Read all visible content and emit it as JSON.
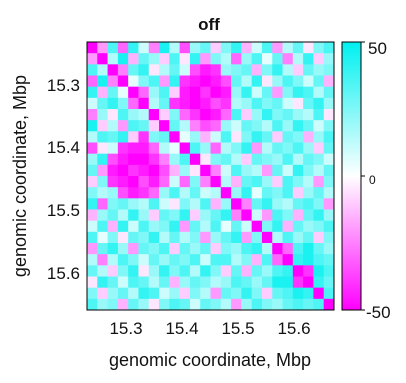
{
  "chart_data": {
    "type": "heatmap",
    "title": "off",
    "xlabel": "genomic coordinate, Mbp",
    "ylabel": "genomic coordinate, Mbp",
    "x_ticks": [
      "15.3",
      "15.4",
      "15.5",
      "15.6"
    ],
    "y_ticks": [
      "15.3",
      "15.4",
      "15.5",
      "15.6"
    ],
    "x_tick_values": [
      15.3,
      15.4,
      15.5,
      15.6
    ],
    "y_tick_values": [
      15.3,
      15.4,
      15.5,
      15.6
    ],
    "xlim": [
      15.24,
      15.665
    ],
    "ylim": [
      15.24,
      15.665
    ],
    "y_direction": "down",
    "colorbar": {
      "ticks": [
        "50",
        "0",
        "-50"
      ],
      "tick_values": [
        50,
        0,
        -50
      ],
      "range": [
        -50,
        50
      ],
      "colors": {
        "max": "#00f0f0",
        "mid": "#ffffff",
        "min": "#ff00ff"
      }
    },
    "grid_size": 24,
    "matrix_note": "symmetric contact difference matrix; diagonal strongly negative",
    "values": [
      [
        -50,
        -20,
        35,
        -30,
        40,
        10,
        -25,
        45,
        15,
        -35,
        20,
        30,
        -10,
        25,
        40,
        -15,
        10,
        35,
        -20,
        15,
        30,
        -5,
        25,
        35
      ],
      [
        -20,
        -50,
        15,
        45,
        -15,
        30,
        20,
        -10,
        35,
        -5,
        40,
        -20,
        25,
        15,
        -30,
        20,
        35,
        5,
        30,
        -25,
        15,
        40,
        -10,
        20
      ],
      [
        35,
        15,
        -50,
        -25,
        30,
        40,
        -5,
        15,
        30,
        10,
        -35,
        -45,
        -40,
        20,
        25,
        30,
        -15,
        25,
        40,
        15,
        -10,
        30,
        20,
        25
      ],
      [
        -30,
        45,
        -25,
        -50,
        5,
        25,
        35,
        -20,
        40,
        -40,
        -45,
        -50,
        -45,
        -35,
        30,
        15,
        40,
        -5,
        20,
        35,
        25,
        10,
        30,
        -15
      ],
      [
        40,
        -15,
        30,
        5,
        -50,
        -30,
        20,
        35,
        -10,
        -45,
        -50,
        -40,
        -50,
        -45,
        20,
        40,
        10,
        30,
        -20,
        25,
        40,
        35,
        15,
        30
      ],
      [
        10,
        30,
        40,
        25,
        -30,
        -50,
        15,
        30,
        -40,
        -45,
        -50,
        -45,
        -35,
        -40,
        15,
        20,
        35,
        25,
        30,
        10,
        -5,
        30,
        40,
        20
      ],
      [
        -25,
        20,
        -5,
        35,
        20,
        15,
        -50,
        -10,
        25,
        -30,
        -40,
        -50,
        -45,
        -30,
        35,
        -10,
        20,
        40,
        25,
        30,
        20,
        15,
        35,
        -5
      ],
      [
        45,
        -10,
        15,
        -20,
        35,
        30,
        -10,
        -50,
        30,
        15,
        -25,
        -35,
        -30,
        20,
        10,
        30,
        25,
        15,
        35,
        20,
        40,
        30,
        10,
        25
      ],
      [
        15,
        35,
        30,
        40,
        -10,
        -40,
        25,
        30,
        -50,
        5,
        20,
        -15,
        10,
        35,
        -5,
        25,
        40,
        30,
        -10,
        30,
        25,
        -15,
        20,
        35
      ],
      [
        -35,
        -5,
        10,
        -40,
        -45,
        -45,
        -30,
        15,
        5,
        -50,
        35,
        20,
        -30,
        15,
        25,
        40,
        -20,
        15,
        30,
        25,
        35,
        20,
        -10,
        30
      ],
      [
        20,
        40,
        -35,
        -45,
        -50,
        -50,
        -40,
        -25,
        20,
        35,
        -50,
        -5,
        25,
        30,
        15,
        -10,
        30,
        25,
        20,
        35,
        15,
        30,
        25,
        10
      ],
      [
        30,
        -20,
        -45,
        -50,
        -40,
        -45,
        -50,
        -35,
        -15,
        20,
        -5,
        -50,
        -25,
        10,
        35,
        20,
        15,
        -20,
        30,
        10,
        40,
        25,
        15,
        30
      ],
      [
        -10,
        25,
        -40,
        -45,
        -50,
        -35,
        -45,
        -30,
        10,
        -30,
        25,
        -25,
        -50,
        15,
        -15,
        30,
        35,
        20,
        -10,
        35,
        25,
        15,
        -20,
        25
      ],
      [
        25,
        15,
        20,
        -35,
        -45,
        -40,
        -30,
        20,
        35,
        15,
        30,
        10,
        15,
        -50,
        20,
        40,
        5,
        30,
        25,
        35,
        -10,
        20,
        30,
        15
      ],
      [
        40,
        -30,
        25,
        30,
        20,
        15,
        35,
        10,
        -5,
        25,
        15,
        35,
        -15,
        20,
        -50,
        -25,
        30,
        40,
        20,
        15,
        30,
        35,
        25,
        -20
      ],
      [
        -15,
        20,
        30,
        15,
        40,
        20,
        -10,
        30,
        25,
        40,
        -10,
        20,
        30,
        40,
        -25,
        -50,
        10,
        -20,
        35,
        25,
        -15,
        30,
        40,
        20
      ],
      [
        10,
        35,
        -15,
        40,
        10,
        35,
        20,
        25,
        40,
        -20,
        30,
        15,
        35,
        5,
        30,
        10,
        -50,
        25,
        40,
        -15,
        30,
        20,
        25,
        35
      ],
      [
        35,
        5,
        25,
        -5,
        30,
        25,
        40,
        15,
        30,
        15,
        25,
        -20,
        20,
        30,
        40,
        -20,
        25,
        -50,
        15,
        35,
        20,
        30,
        -10,
        25
      ],
      [
        -20,
        30,
        40,
        20,
        -20,
        30,
        25,
        35,
        -10,
        30,
        20,
        30,
        -10,
        25,
        20,
        35,
        40,
        15,
        -50,
        -30,
        35,
        45,
        30,
        20
      ],
      [
        15,
        -25,
        15,
        35,
        25,
        10,
        30,
        20,
        30,
        25,
        35,
        10,
        35,
        35,
        15,
        25,
        -15,
        35,
        -30,
        -50,
        40,
        45,
        35,
        30
      ],
      [
        30,
        15,
        -10,
        25,
        40,
        -5,
        20,
        40,
        25,
        35,
        15,
        40,
        25,
        -10,
        30,
        -15,
        30,
        20,
        35,
        40,
        -50,
        -40,
        45,
        35
      ],
      [
        -5,
        40,
        30,
        10,
        35,
        30,
        15,
        30,
        -15,
        20,
        30,
        25,
        15,
        20,
        35,
        30,
        20,
        30,
        45,
        45,
        -40,
        -50,
        40,
        30
      ],
      [
        25,
        -10,
        20,
        30,
        15,
        40,
        35,
        10,
        20,
        -10,
        25,
        15,
        -20,
        30,
        25,
        40,
        25,
        -10,
        30,
        35,
        45,
        40,
        -50,
        35
      ],
      [
        35,
        20,
        25,
        -15,
        30,
        20,
        -5,
        25,
        35,
        30,
        10,
        30,
        25,
        15,
        -20,
        20,
        35,
        25,
        20,
        30,
        35,
        30,
        35,
        -50
      ]
    ]
  }
}
